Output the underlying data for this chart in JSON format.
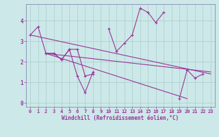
{
  "xlabel": "Windchill (Refroidissement éolien,°C)",
  "x_values": [
    0,
    1,
    2,
    3,
    4,
    5,
    6,
    7,
    8,
    9,
    10,
    11,
    12,
    13,
    14,
    15,
    16,
    17,
    18,
    19,
    20,
    21,
    22,
    23
  ],
  "line1": [
    3.3,
    3.7,
    2.4,
    2.4,
    2.1,
    2.6,
    1.3,
    0.5,
    1.5,
    null,
    3.6,
    2.5,
    2.9,
    3.3,
    4.6,
    4.4,
    3.9,
    4.4,
    null,
    0.2,
    1.6,
    1.2,
    1.4,
    null
  ],
  "line2_x": [
    2,
    3,
    4,
    5,
    6,
    7,
    8
  ],
  "line2_y": [
    2.4,
    2.4,
    2.1,
    2.6,
    2.6,
    1.3,
    1.4
  ],
  "line3_x": [
    0,
    23
  ],
  "line3_y": [
    3.3,
    1.4
  ],
  "line4_x": [
    2,
    23
  ],
  "line4_y": [
    2.4,
    1.5
  ],
  "line5_x": [
    2,
    20
  ],
  "line5_y": [
    2.4,
    0.2
  ],
  "background_color": "#cce8e8",
  "grid_color": "#aacccc",
  "line_color": "#993399",
  "spine_color": "#7777aa",
  "ylim": [
    -0.2,
    4.8
  ],
  "xlim": [
    -0.5,
    23.5
  ],
  "yticks": [
    0,
    1,
    2,
    3,
    4
  ],
  "xticks": [
    0,
    1,
    2,
    3,
    4,
    5,
    6,
    7,
    8,
    9,
    10,
    11,
    12,
    13,
    14,
    15,
    16,
    17,
    18,
    19,
    20,
    21,
    22,
    23
  ],
  "tick_fontsize": 5,
  "xlabel_fontsize": 5.5,
  "marker_size": 3,
  "linewidth": 0.8
}
